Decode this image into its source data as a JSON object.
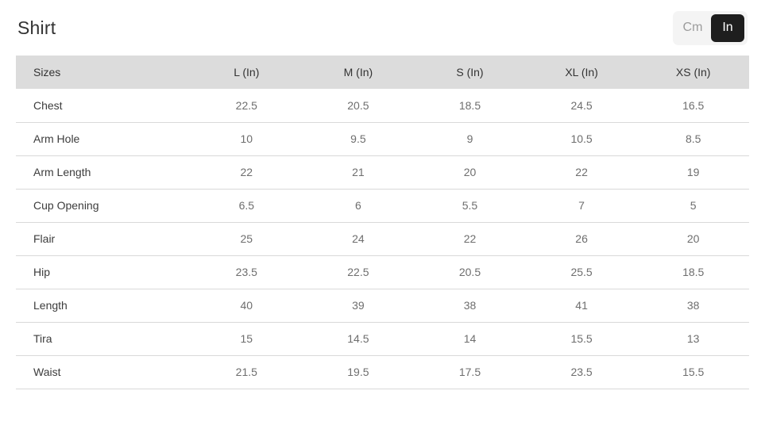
{
  "page": {
    "title": "Shirt"
  },
  "unit_toggle": {
    "cm_label": "Cm",
    "in_label": "In",
    "selected": "In"
  },
  "table": {
    "headers": [
      "Sizes",
      "L (In)",
      "M (In)",
      "S (In)",
      "XL (In)",
      "XS (In)"
    ],
    "rows": [
      {
        "label": "Chest",
        "values": [
          "22.5",
          "20.5",
          "18.5",
          "24.5",
          "16.5"
        ]
      },
      {
        "label": "Arm Hole",
        "values": [
          "10",
          "9.5",
          "9",
          "10.5",
          "8.5"
        ]
      },
      {
        "label": "Arm Length",
        "values": [
          "22",
          "21",
          "20",
          "22",
          "19"
        ]
      },
      {
        "label": "Cup Opening",
        "values": [
          "6.5",
          "6",
          "5.5",
          "7",
          "5"
        ]
      },
      {
        "label": "Flair",
        "values": [
          "25",
          "24",
          "22",
          "26",
          "20"
        ]
      },
      {
        "label": "Hip",
        "values": [
          "23.5",
          "22.5",
          "20.5",
          "25.5",
          "18.5"
        ]
      },
      {
        "label": "Length",
        "values": [
          "40",
          "39",
          "38",
          "41",
          "38"
        ]
      },
      {
        "label": "Tira",
        "values": [
          "15",
          "14.5",
          "14",
          "15.5",
          "13"
        ]
      },
      {
        "label": "Waist",
        "values": [
          "21.5",
          "19.5",
          "17.5",
          "23.5",
          "15.5"
        ]
      }
    ]
  },
  "colors": {
    "header_bg": "#dcdcdc",
    "row_border": "#d9d9d9",
    "title_text": "#333333",
    "label_text": "#3c3c3c",
    "value_text": "#6e6e6e",
    "toggle_container_bg": "#f4f4f4",
    "toggle_inactive_text": "#9c9c9c",
    "toggle_active_bg": "#1e1e1e",
    "toggle_active_text": "#ffffff"
  }
}
